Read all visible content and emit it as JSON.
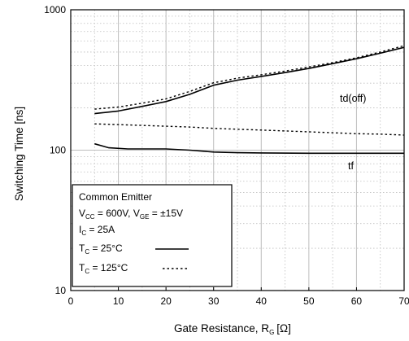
{
  "chart_data": {
    "type": "line",
    "xlabel": "Gate Resistance, R",
    "xlabel_sub": "G",
    "xlabel_unit": "[Ω]",
    "ylabel": "Switching Time [ns]",
    "xlim": [
      0,
      70
    ],
    "ylim": [
      10,
      1000
    ],
    "y_scale": "log",
    "grid": true,
    "x_ticks": [
      "0",
      "10",
      "20",
      "30",
      "40",
      "50",
      "60",
      "70"
    ],
    "y_ticks": [
      "10",
      "100",
      "1000"
    ],
    "curve_labels": [
      {
        "text": "td(off)"
      },
      {
        "text": "tf"
      }
    ],
    "legend": {
      "title": "Common Emitter",
      "vcc_prefix": "V",
      "vcc_sub": "CC",
      "vcc_value": " = 600V, V",
      "vge_sub": "GE",
      "vge_value": " = ±15V",
      "ic_prefix": "I",
      "ic_sub": "C",
      "ic_value": " = 25A",
      "tc1_prefix": "T",
      "tc1_sub": "C",
      "tc1_value": " = 25°C",
      "tc2_prefix": "T",
      "tc2_sub": "C",
      "tc2_value": " = 125°C"
    },
    "series": [
      {
        "group": "td(off)",
        "condition": "Tc = 25°C",
        "style": "solid",
        "x": [
          5,
          10,
          15,
          20,
          25,
          30,
          35,
          40,
          45,
          50,
          55,
          60,
          65,
          70
        ],
        "y": [
          182,
          190,
          205,
          222,
          250,
          290,
          315,
          335,
          357,
          382,
          413,
          448,
          490,
          540
        ]
      },
      {
        "group": "td(off)",
        "condition": "Tc = 125°C",
        "style": "dotted",
        "x": [
          5,
          10,
          15,
          20,
          25,
          30,
          35,
          40,
          45,
          50,
          55,
          60,
          65,
          70
        ],
        "y": [
          196,
          203,
          216,
          232,
          262,
          302,
          326,
          344,
          366,
          392,
          420,
          455,
          500,
          555
        ]
      },
      {
        "group": "tf",
        "condition": "Tc = 125°C",
        "style": "dotted",
        "x": [
          5,
          10,
          15,
          20,
          25,
          30,
          35,
          40,
          45,
          50,
          55,
          60,
          65,
          70
        ],
        "y": [
          154,
          152,
          150,
          148,
          146,
          143,
          141,
          139,
          137,
          135,
          133,
          131,
          130,
          128
        ]
      },
      {
        "group": "tf",
        "condition": "Tc = 25°C",
        "style": "solid",
        "x": [
          5,
          8,
          12,
          15,
          20,
          25,
          30,
          35,
          40,
          50,
          60,
          70
        ],
        "y": [
          111,
          104,
          102,
          102,
          102,
          100,
          97,
          96,
          95.5,
          95,
          95,
          95
        ]
      }
    ]
  }
}
